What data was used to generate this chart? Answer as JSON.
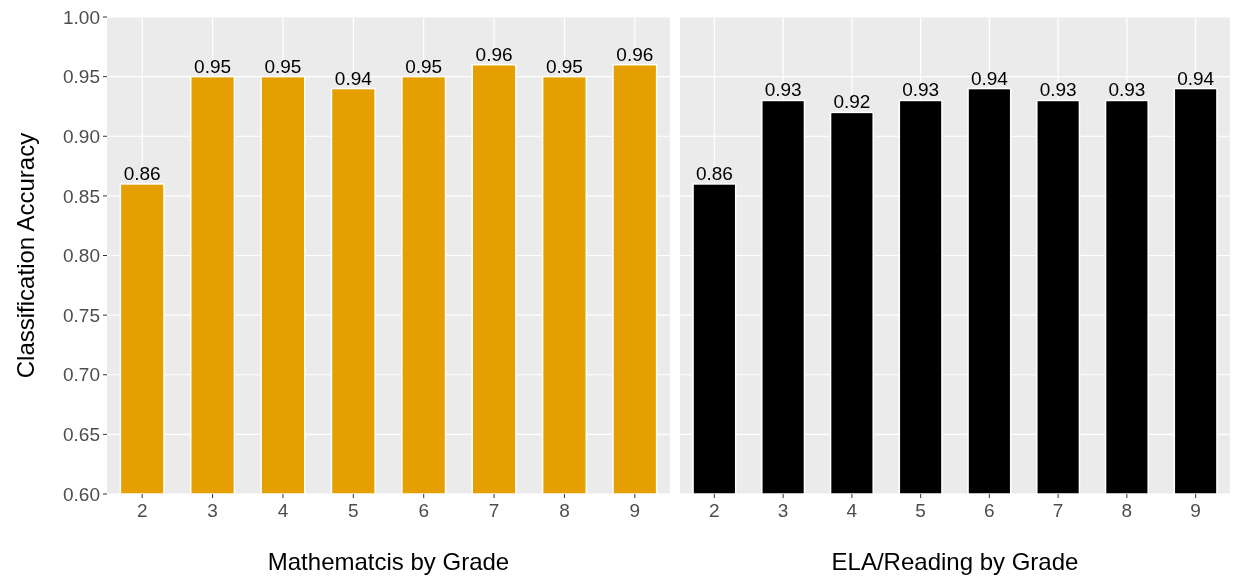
{
  "chart_data": [
    {
      "type": "bar",
      "xlabel": "Mathematcis by Grade",
      "ylabel": "Classification Accuracy",
      "categories": [
        "2",
        "3",
        "4",
        "5",
        "6",
        "7",
        "8",
        "9"
      ],
      "values": [
        0.86,
        0.95,
        0.95,
        0.94,
        0.95,
        0.96,
        0.95,
        0.96
      ],
      "color": "#e69f00",
      "ylim": [
        0.6,
        1.0
      ],
      "yticks": [
        {
          "value": 0.6,
          "label": "0.60"
        },
        {
          "value": 0.65,
          "label": "0.65"
        },
        {
          "value": 0.7,
          "label": "0.70"
        },
        {
          "value": 0.75,
          "label": "0.75"
        },
        {
          "value": 0.8,
          "label": "0.80"
        },
        {
          "value": 0.85,
          "label": "0.85"
        },
        {
          "value": 0.9,
          "label": "0.90"
        },
        {
          "value": 0.95,
          "label": "0.95"
        },
        {
          "value": 1.0,
          "label": "1.00"
        }
      ],
      "grid": true,
      "data_labels": true
    },
    {
      "type": "bar",
      "xlabel": "ELA/Reading by Grade",
      "categories": [
        "2",
        "3",
        "4",
        "5",
        "6",
        "7",
        "8",
        "9"
      ],
      "values": [
        0.86,
        0.93,
        0.92,
        0.93,
        0.94,
        0.93,
        0.93,
        0.94
      ],
      "color": "#000000",
      "ylim": [
        0.6,
        1.0
      ],
      "yticks": [
        {
          "value": 0.6,
          "label": null
        },
        {
          "value": 0.65,
          "label": null
        },
        {
          "value": 0.7,
          "label": null
        },
        {
          "value": 0.75,
          "label": null
        },
        {
          "value": 0.8,
          "label": null
        },
        {
          "value": 0.85,
          "label": null
        },
        {
          "value": 0.9,
          "label": null
        },
        {
          "value": 0.95,
          "label": null
        },
        {
          "value": 1.0,
          "label": null
        }
      ],
      "grid": true,
      "data_labels": true,
      "tick_labels": "x"
    }
  ]
}
